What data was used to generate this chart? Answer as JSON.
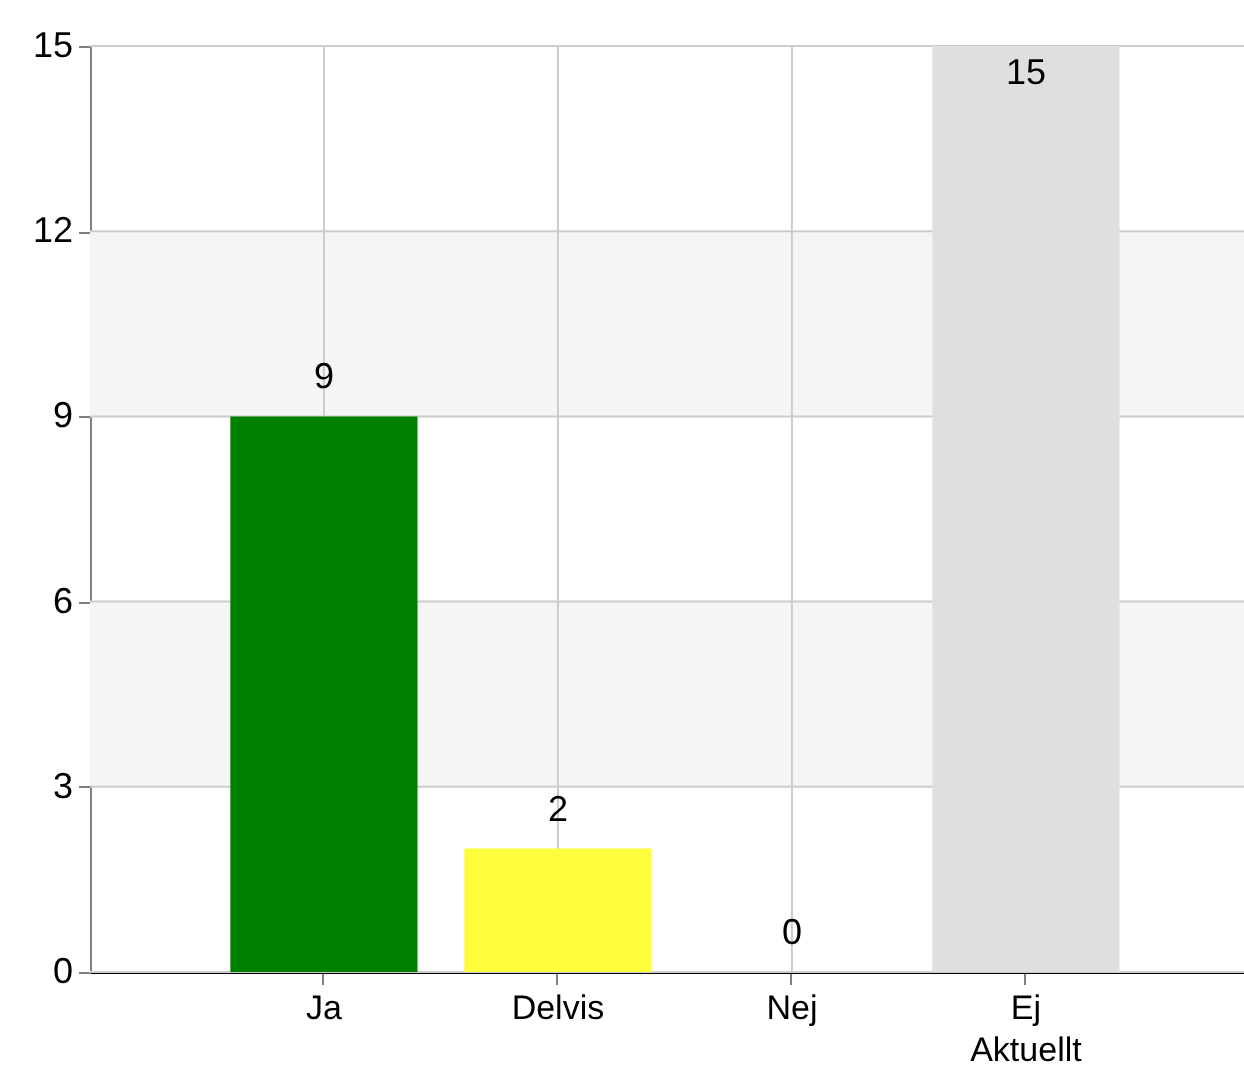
{
  "chart_data": {
    "type": "bar",
    "categories": [
      "Ja",
      "Delvis",
      "Nej",
      "Ej Aktuellt"
    ],
    "values": [
      9,
      2,
      0,
      15
    ],
    "colors": [
      "#008000",
      "#fdfd3c",
      "#ff0000",
      "#dfdfdf"
    ],
    "ylim": [
      0,
      15
    ],
    "yticks": [
      0,
      3,
      6,
      9,
      12,
      15
    ],
    "grid": true,
    "data_labels": true,
    "bands": [
      {
        "axis": "y",
        "from": 3,
        "to": 6,
        "color": "#f5f5f5"
      },
      {
        "axis": "y",
        "from": 9,
        "to": 12,
        "color": "#f5f5f5"
      }
    ]
  }
}
